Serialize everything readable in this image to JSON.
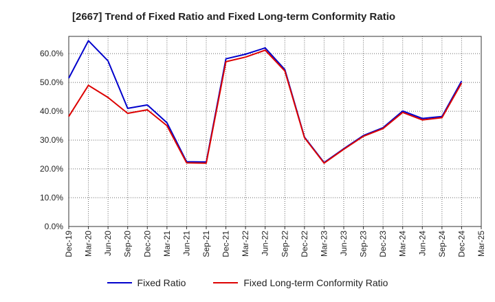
{
  "title": "[2667]  Trend of Fixed Ratio and Fixed Long-term Conformity Ratio",
  "chart_data": {
    "type": "line",
    "title": "[2667]  Trend of Fixed Ratio and Fixed Long-term Conformity Ratio",
    "xlabel": "",
    "ylabel": "",
    "categories": [
      "Dec-19",
      "Mar-20",
      "Jun-20",
      "Sep-20",
      "Dec-20",
      "Mar-21",
      "Jun-21",
      "Sep-21",
      "Dec-21",
      "Mar-22",
      "Jun-22",
      "Sep-22",
      "Dec-22",
      "Mar-23",
      "Jun-23",
      "Sep-23",
      "Dec-23",
      "Mar-24",
      "Jun-24",
      "Sep-24",
      "Dec-24",
      "Mar-25"
    ],
    "y_ticks": [
      "0.0%",
      "10.0%",
      "20.0%",
      "30.0%",
      "40.0%",
      "50.0%",
      "60.0%"
    ],
    "ylim": [
      0,
      66
    ],
    "grid": true,
    "legend_position": "bottom",
    "series": [
      {
        "name": "Fixed Ratio",
        "color": "#0000cc",
        "values": [
          51.5,
          64.5,
          57.5,
          41.0,
          42.2,
          36.0,
          22.5,
          22.4,
          58.2,
          59.8,
          62.0,
          54.5,
          31.0,
          22.2,
          27.0,
          31.6,
          34.3,
          40.1,
          37.5,
          38.2,
          50.5,
          null
        ]
      },
      {
        "name": "Fixed Long-term Conformity Ratio",
        "color": "#dd0000",
        "values": [
          38.2,
          49.0,
          44.8,
          39.3,
          40.5,
          35.0,
          22.1,
          22.0,
          57.2,
          58.8,
          61.2,
          54.0,
          30.8,
          22.0,
          26.8,
          31.3,
          34.0,
          39.6,
          37.0,
          37.8,
          49.8,
          null
        ]
      }
    ]
  }
}
